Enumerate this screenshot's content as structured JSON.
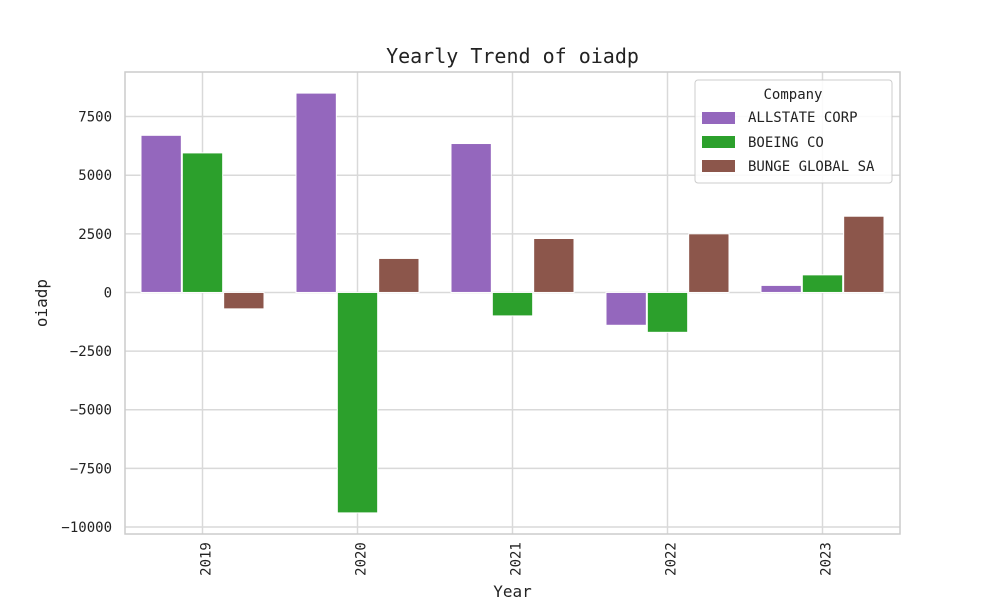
{
  "chart_data": {
    "type": "bar",
    "title": "Yearly Trend of oiadp",
    "xlabel": "Year",
    "ylabel": "oiadp",
    "categories": [
      "2019",
      "2020",
      "2021",
      "2022",
      "2023"
    ],
    "series": [
      {
        "name": "ALLSTATE CORP",
        "color": "#9467bd",
        "values": [
          6700,
          8500,
          6350,
          -1400,
          300
        ]
      },
      {
        "name": "BOEING CO",
        "color": "#2ca02c",
        "values": [
          5950,
          -9400,
          -1000,
          -1700,
          750
        ]
      },
      {
        "name": "BUNGE GLOBAL SA",
        "color": "#8c564b",
        "values": [
          -700,
          1450,
          2300,
          2500,
          3250
        ]
      }
    ],
    "ylim": [
      -10300,
      9400
    ],
    "yticks": [
      -10000,
      -7500,
      -5000,
      -2500,
      0,
      2500,
      5000,
      7500
    ],
    "ytick_labels": [
      "−10000",
      "−7500",
      "−5000",
      "−2500",
      "0",
      "2500",
      "5000",
      "7500"
    ],
    "grid": true,
    "legend": {
      "title": "Company",
      "placement": "top-right"
    }
  }
}
